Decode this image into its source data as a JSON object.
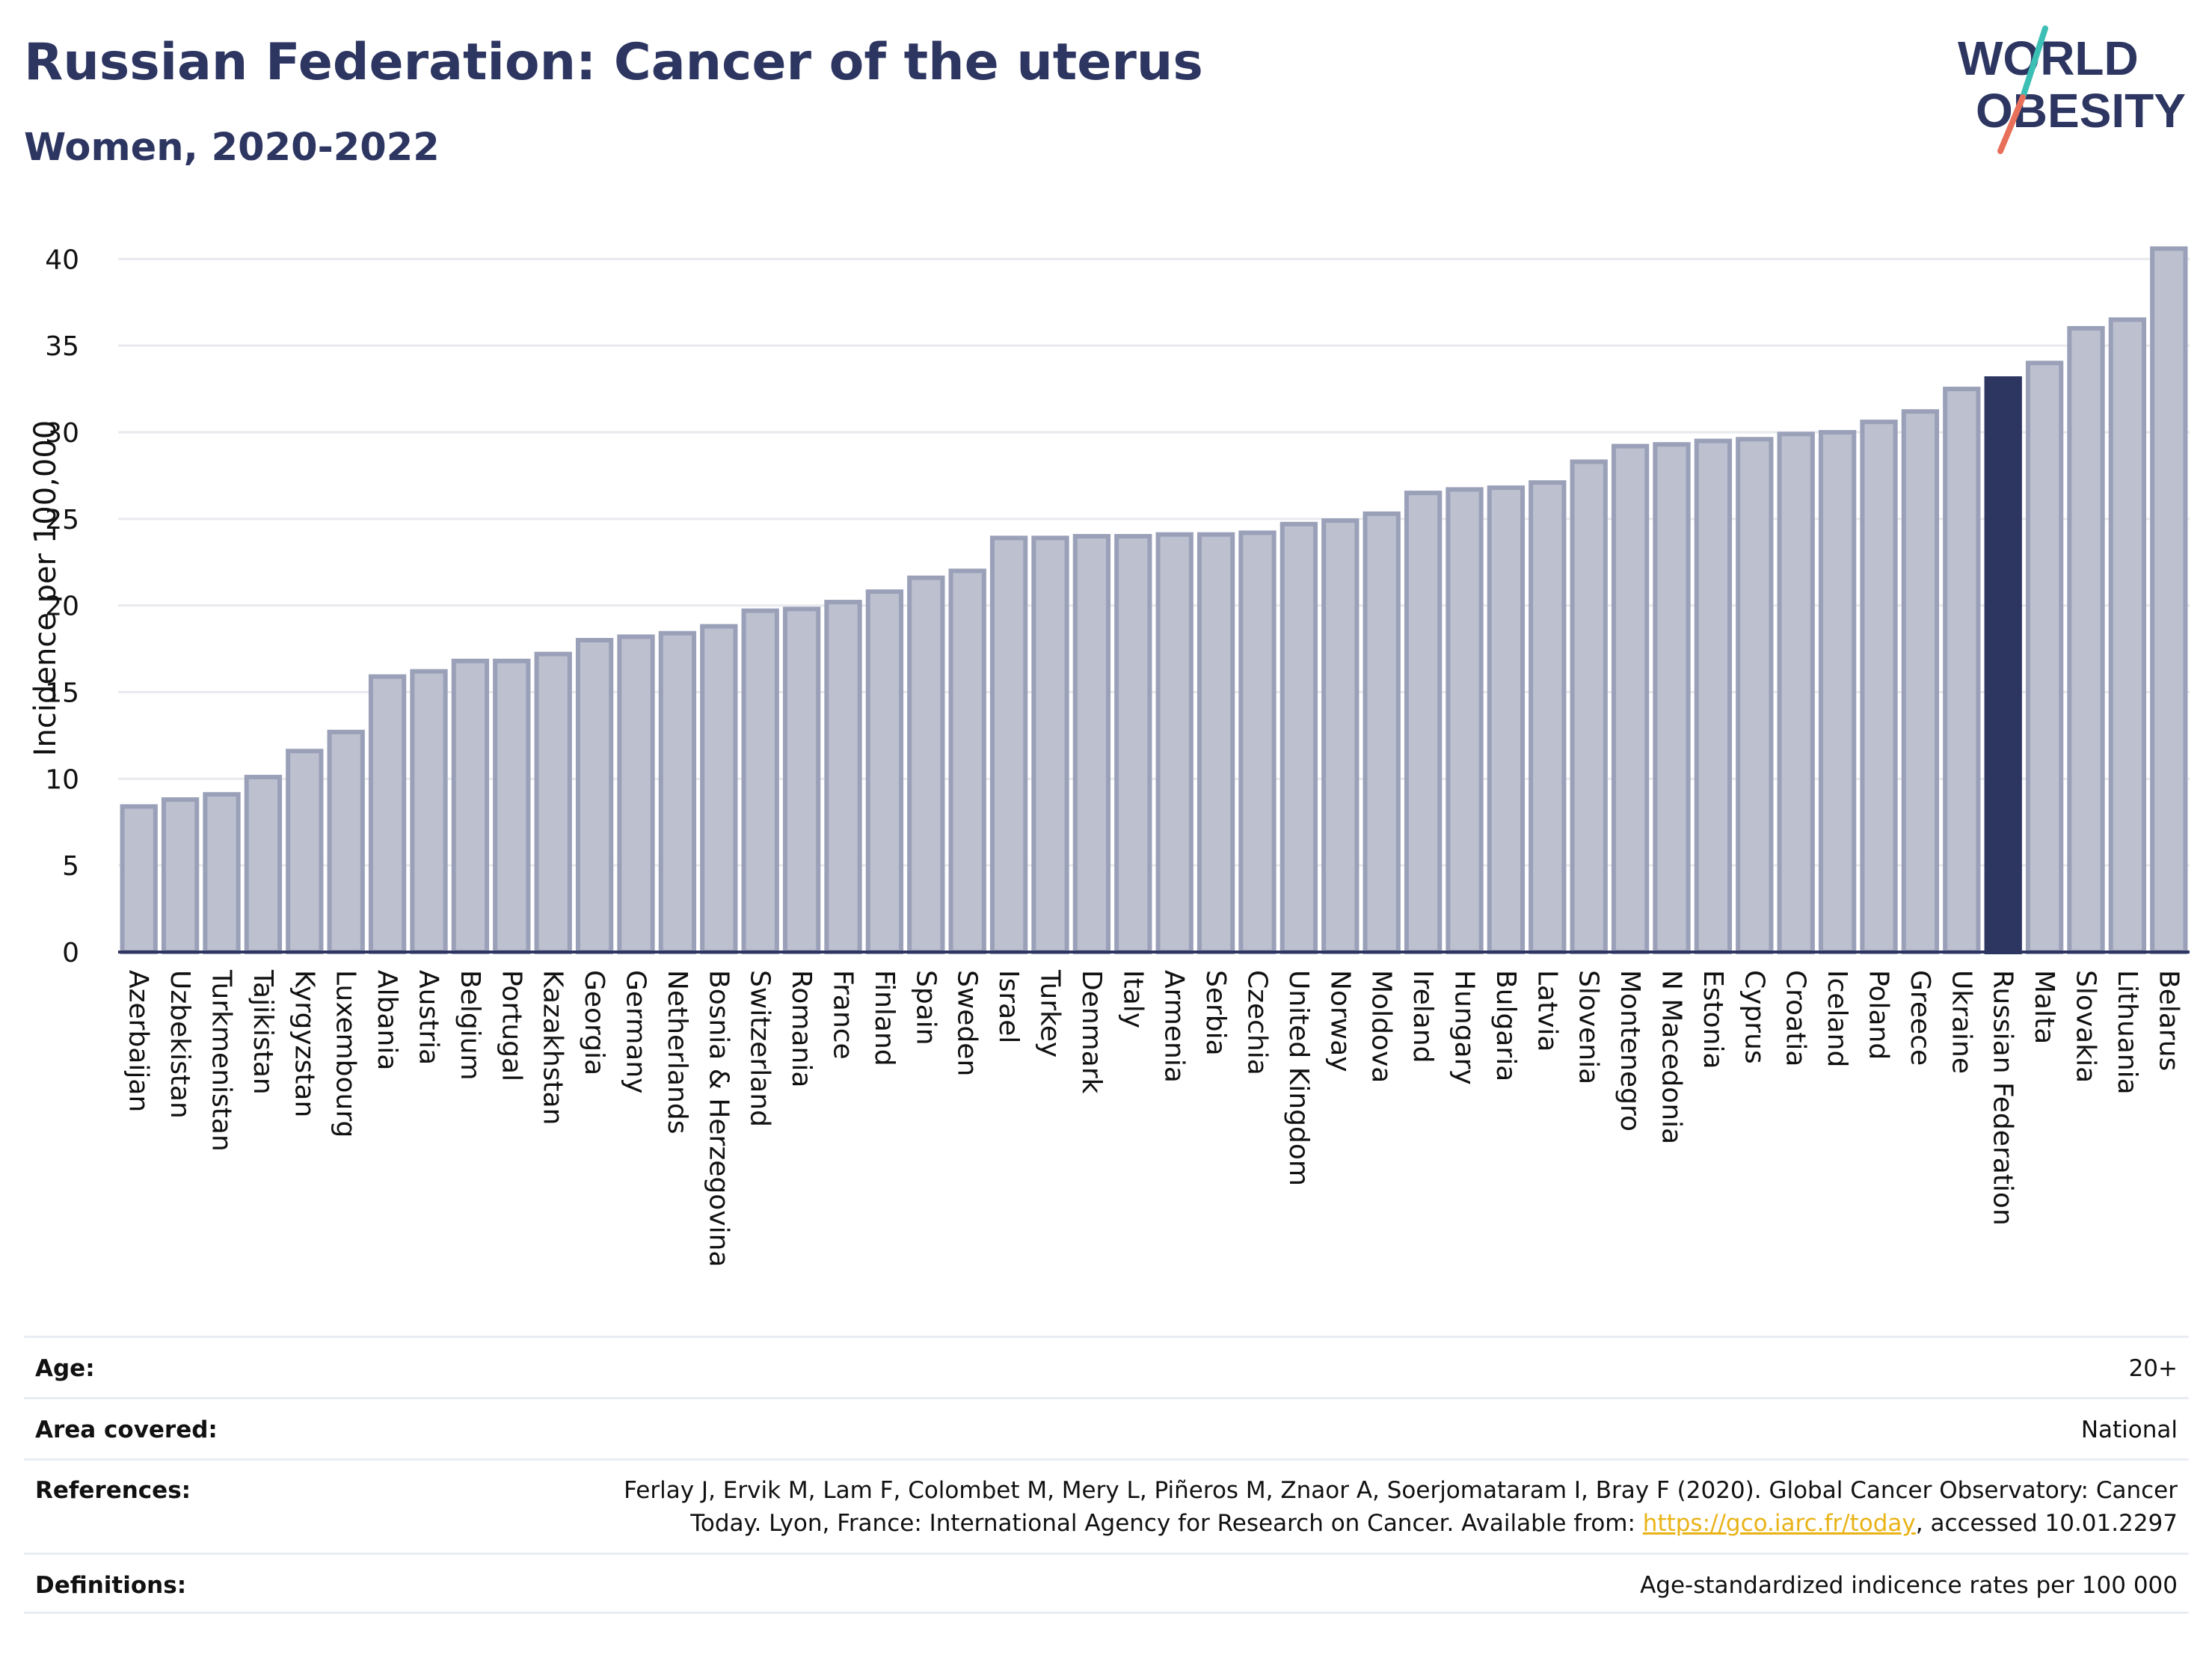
{
  "header": {
    "title": "Russian Federation: Cancer of the uterus",
    "subtitle": "Women, 2020-2022"
  },
  "logo": {
    "line1": "WORLD",
    "line2": "OBESITY",
    "colors": {
      "text": "#2d3561",
      "slash_teal": "#3cbfb4",
      "slash_coral": "#e8705a"
    }
  },
  "colors": {
    "bar_fill": "#bcc0cf",
    "bar_stroke": "#9aa0b8",
    "highlight_fill": "#2d3561",
    "grid": "#e8eaee",
    "axis_text": "#111111"
  },
  "chart_data": {
    "type": "bar",
    "title": "Russian Federation: Cancer of the uterus",
    "subtitle": "Women, 2020-2022",
    "xlabel": "",
    "ylabel": "Incidence per 100,000",
    "ylim": [
      0,
      42
    ],
    "yticks": [
      0,
      5,
      10,
      15,
      20,
      25,
      30,
      35,
      40
    ],
    "grid": true,
    "highlight": "Russian Federation",
    "categories": [
      "Azerbaijan",
      "Uzbekistan",
      "Turkmenistan",
      "Tajikistan",
      "Kyrgyzstan",
      "Luxembourg",
      "Albania",
      "Austria",
      "Belgium",
      "Portugal",
      "Kazakhstan",
      "Georgia",
      "Germany",
      "Netherlands",
      "Bosnia & Herzegovina",
      "Switzerland",
      "Romania",
      "France",
      "Finland",
      "Spain",
      "Sweden",
      "Israel",
      "Turkey",
      "Denmark",
      "Italy",
      "Armenia",
      "Serbia",
      "Czechia",
      "United Kingdom",
      "Norway",
      "Moldova",
      "Ireland",
      "Hungary",
      "Bulgaria",
      "Latvia",
      "Slovenia",
      "Montenegro",
      "N Macedonia",
      "Estonia",
      "Cyprus",
      "Croatia",
      "Iceland",
      "Poland",
      "Greece",
      "Ukraine",
      "Russian Federation",
      "Malta",
      "Slovakia",
      "Lithuania",
      "Belarus"
    ],
    "values": [
      8.4,
      8.8,
      9.1,
      10.1,
      11.6,
      12.7,
      15.9,
      16.2,
      16.8,
      16.8,
      17.2,
      18.0,
      18.2,
      18.4,
      18.8,
      19.7,
      19.8,
      20.2,
      20.8,
      21.6,
      22.0,
      23.9,
      23.9,
      24.0,
      24.0,
      24.1,
      24.1,
      24.2,
      24.7,
      24.9,
      25.3,
      26.5,
      26.7,
      26.8,
      27.1,
      28.3,
      29.2,
      29.3,
      29.5,
      29.6,
      29.9,
      30.0,
      30.6,
      31.2,
      32.5,
      33.1,
      34.0,
      36.0,
      36.5,
      40.6
    ]
  },
  "footer": {
    "age": {
      "label": "Age:",
      "value": "20+"
    },
    "area": {
      "label": "Area covered:",
      "value": "National"
    },
    "references": {
      "label": "References:",
      "text_before": "Ferlay J, Ervik M, Lam F, Colombet M, Mery L, Piñeros M, Znaor A, Soerjomataram I, Bray F (2020). Global Cancer Observatory: Cancer Today. Lyon, France: International Agency for Research on Cancer. Available from: ",
      "link": "https://gco.iarc.fr/today",
      "text_after": ", accessed 10.01.2297"
    },
    "definitions": {
      "label": "Definitions:",
      "value": "Age-standardized indicence rates per 100 000"
    }
  }
}
